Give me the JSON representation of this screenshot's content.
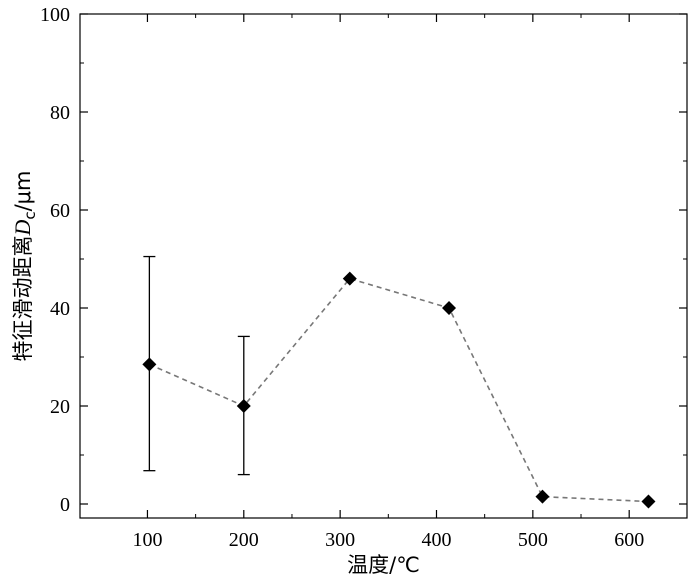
{
  "chart_data": {
    "type": "scatter",
    "xlabel": "温度/℃",
    "ylabel": {
      "prefix": "特征滑动距离",
      "symbol": "D",
      "subscript": "c",
      "suffix": "/μm"
    },
    "xlim": [
      30,
      660
    ],
    "ylim": [
      0,
      100
    ],
    "xticks": [
      100,
      200,
      300,
      400,
      500,
      600
    ],
    "yticks": [
      0,
      20,
      40,
      60,
      80,
      100
    ],
    "grid": false,
    "legend": "none",
    "series": [
      {
        "marker": "diamond",
        "line_style": "dashed",
        "line_color": "#777777",
        "marker_color": "#000000",
        "points": [
          {
            "x": 102,
            "y": 28.5,
            "err_low": 6.8,
            "err_high": 50.5
          },
          {
            "x": 200,
            "y": 20.0,
            "err_low": 6.0,
            "err_high": 34.2
          },
          {
            "x": 310,
            "y": 46.0
          },
          {
            "x": 413,
            "y": 40.0
          },
          {
            "x": 510,
            "y": 1.5
          },
          {
            "x": 620,
            "y": 0.5
          }
        ]
      }
    ]
  }
}
